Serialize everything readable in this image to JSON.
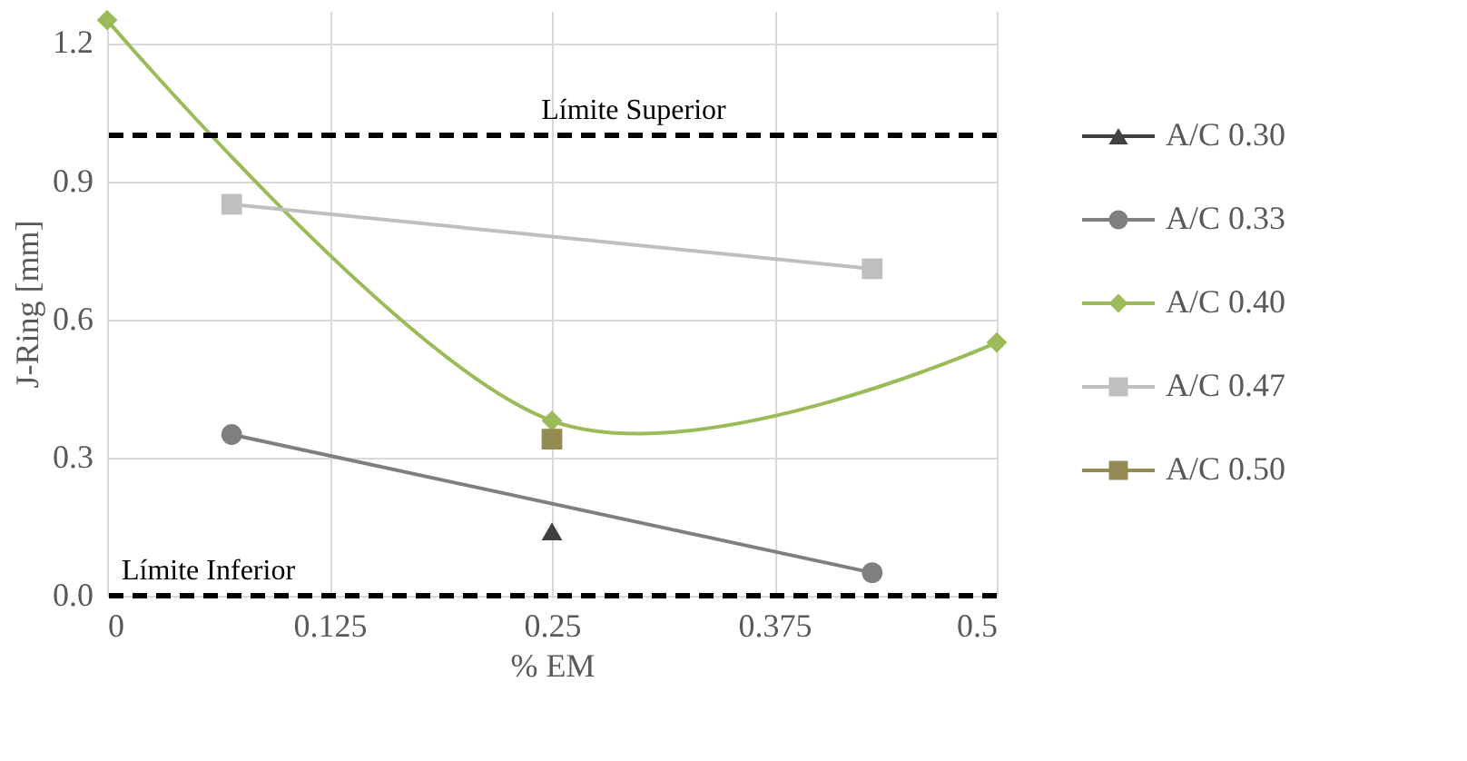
{
  "chart_data": {
    "type": "line",
    "xlabel": "% EM",
    "ylabel": "J-Ring [mm]",
    "xlim": [
      0,
      0.5
    ],
    "xticks": [
      0,
      0.125,
      0.25,
      0.375,
      0.5
    ],
    "ylim": [
      0,
      1.27
    ],
    "yticks": [
      {
        "value": 0,
        "label": "0.0"
      },
      0.3,
      0.6,
      0.9,
      1.2
    ],
    "grid": true,
    "legend": "right",
    "series": [
      {
        "name": "A/C 0.30",
        "color": "#404040",
        "marker": "triangle",
        "x": [
          0.25
        ],
        "values": [
          0.14
        ]
      },
      {
        "name": "A/C 0.33",
        "color": "#7f7f7f",
        "marker": "circle",
        "x": [
          0.07,
          0.43
        ],
        "values": [
          0.35,
          0.05
        ]
      },
      {
        "name": "A/C 0.40",
        "color": "#9bbb59",
        "marker": "diamond",
        "x": [
          0,
          0.25,
          0.5
        ],
        "values": [
          1.25,
          0.38,
          0.55
        ]
      },
      {
        "name": "A/C 0.47",
        "color": "#bfbfbf",
        "marker": "square",
        "x": [
          0.07,
          0.43
        ],
        "values": [
          0.85,
          0.71
        ]
      },
      {
        "name": "A/C 0.50",
        "color": "#948a54",
        "marker": "square",
        "x": [
          0.25
        ],
        "values": [
          0.34
        ]
      }
    ],
    "ref_lines": [
      {
        "axis": "y",
        "value": 1,
        "label": "Límite Superior",
        "color": "#000000",
        "line_style": "dashed"
      },
      {
        "axis": "y",
        "value": 0,
        "label": "Límite Inferior",
        "color": "#000000",
        "line_style": "dashed"
      }
    ]
  }
}
